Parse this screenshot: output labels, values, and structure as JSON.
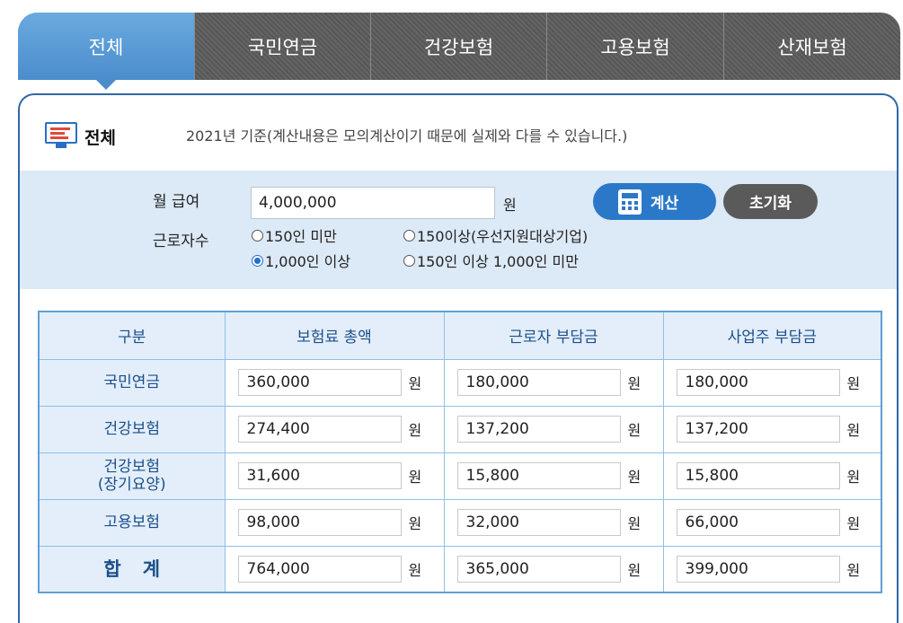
{
  "tabs": [
    {
      "label": "전체",
      "active": true
    },
    {
      "label": "국민연금",
      "active": false
    },
    {
      "label": "건강보험",
      "active": false
    },
    {
      "label": "고용보험",
      "active": false
    },
    {
      "label": "산재보험",
      "active": false
    }
  ],
  "section": {
    "title": "전체",
    "note": "2021년 기준(계산내용은 모의계산이기 때문에 실제와 다를 수 있습니다.)"
  },
  "form": {
    "salary_label": "월 급여",
    "salary_value": "4,000,000",
    "currency": "원",
    "workers_label": "근로자수",
    "options": [
      {
        "label": "150인 미만",
        "selected": false
      },
      {
        "label": "150이상(우선지원대상기업)",
        "selected": false
      },
      {
        "label": "1,000인 이상",
        "selected": true
      },
      {
        "label": "150인 이상 1,000인 미만",
        "selected": false
      }
    ],
    "calc_label": "계산",
    "reset_label": "초기화"
  },
  "table": {
    "headers": [
      "구분",
      "보험료 총액",
      "근로자 부담금",
      "사업주 부담금"
    ],
    "currency": "원",
    "rows": [
      {
        "name": "국민연금",
        "sub": "",
        "total": "360,000",
        "worker": "180,000",
        "employer": "180,000"
      },
      {
        "name": "건강보험",
        "sub": "",
        "total": "274,400",
        "worker": "137,200",
        "employer": "137,200"
      },
      {
        "name": "건강보험",
        "sub": "(장기요양)",
        "total": "31,600",
        "worker": "15,800",
        "employer": "15,800"
      },
      {
        "name": "고용보험",
        "sub": "",
        "total": "98,000",
        "worker": "32,000",
        "employer": "66,000"
      }
    ],
    "sum": {
      "name": "합계",
      "total": "764,000",
      "worker": "365,000",
      "employer": "399,000"
    }
  },
  "colors": {
    "accent": "#2b78c8",
    "tab_active": "#5a9bd6",
    "tab_inactive": "#5c5c5c",
    "header_bg": "#e3eefa"
  }
}
